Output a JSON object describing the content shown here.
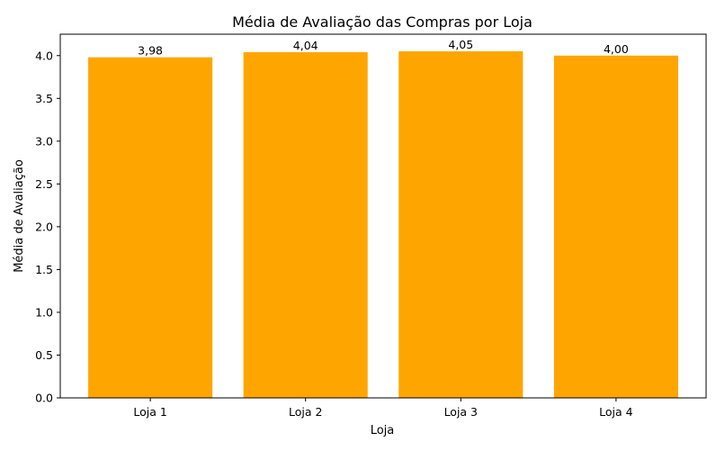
{
  "chart_data": {
    "type": "bar",
    "title": "Média de Avaliação das Compras por Loja",
    "xlabel": "Loja",
    "ylabel": "Média de Avaliação",
    "categories": [
      "Loja 1",
      "Loja 2",
      "Loja 3",
      "Loja 4"
    ],
    "values": [
      3.98,
      4.04,
      4.05,
      4.0
    ],
    "data_labels": [
      "3,98",
      "4,04",
      "4,05",
      "4,00"
    ],
    "ylim": [
      0,
      4.25
    ],
    "yticks": [
      0.0,
      0.5,
      1.0,
      1.5,
      2.0,
      2.5,
      3.0,
      3.5,
      4.0
    ],
    "ytick_labels": [
      "0.0",
      "0.5",
      "1.0",
      "1.5",
      "2.0",
      "2.5",
      "3.0",
      "3.5",
      "4.0"
    ],
    "bar_color": "#FFA500",
    "grid": false,
    "legend": "none"
  }
}
